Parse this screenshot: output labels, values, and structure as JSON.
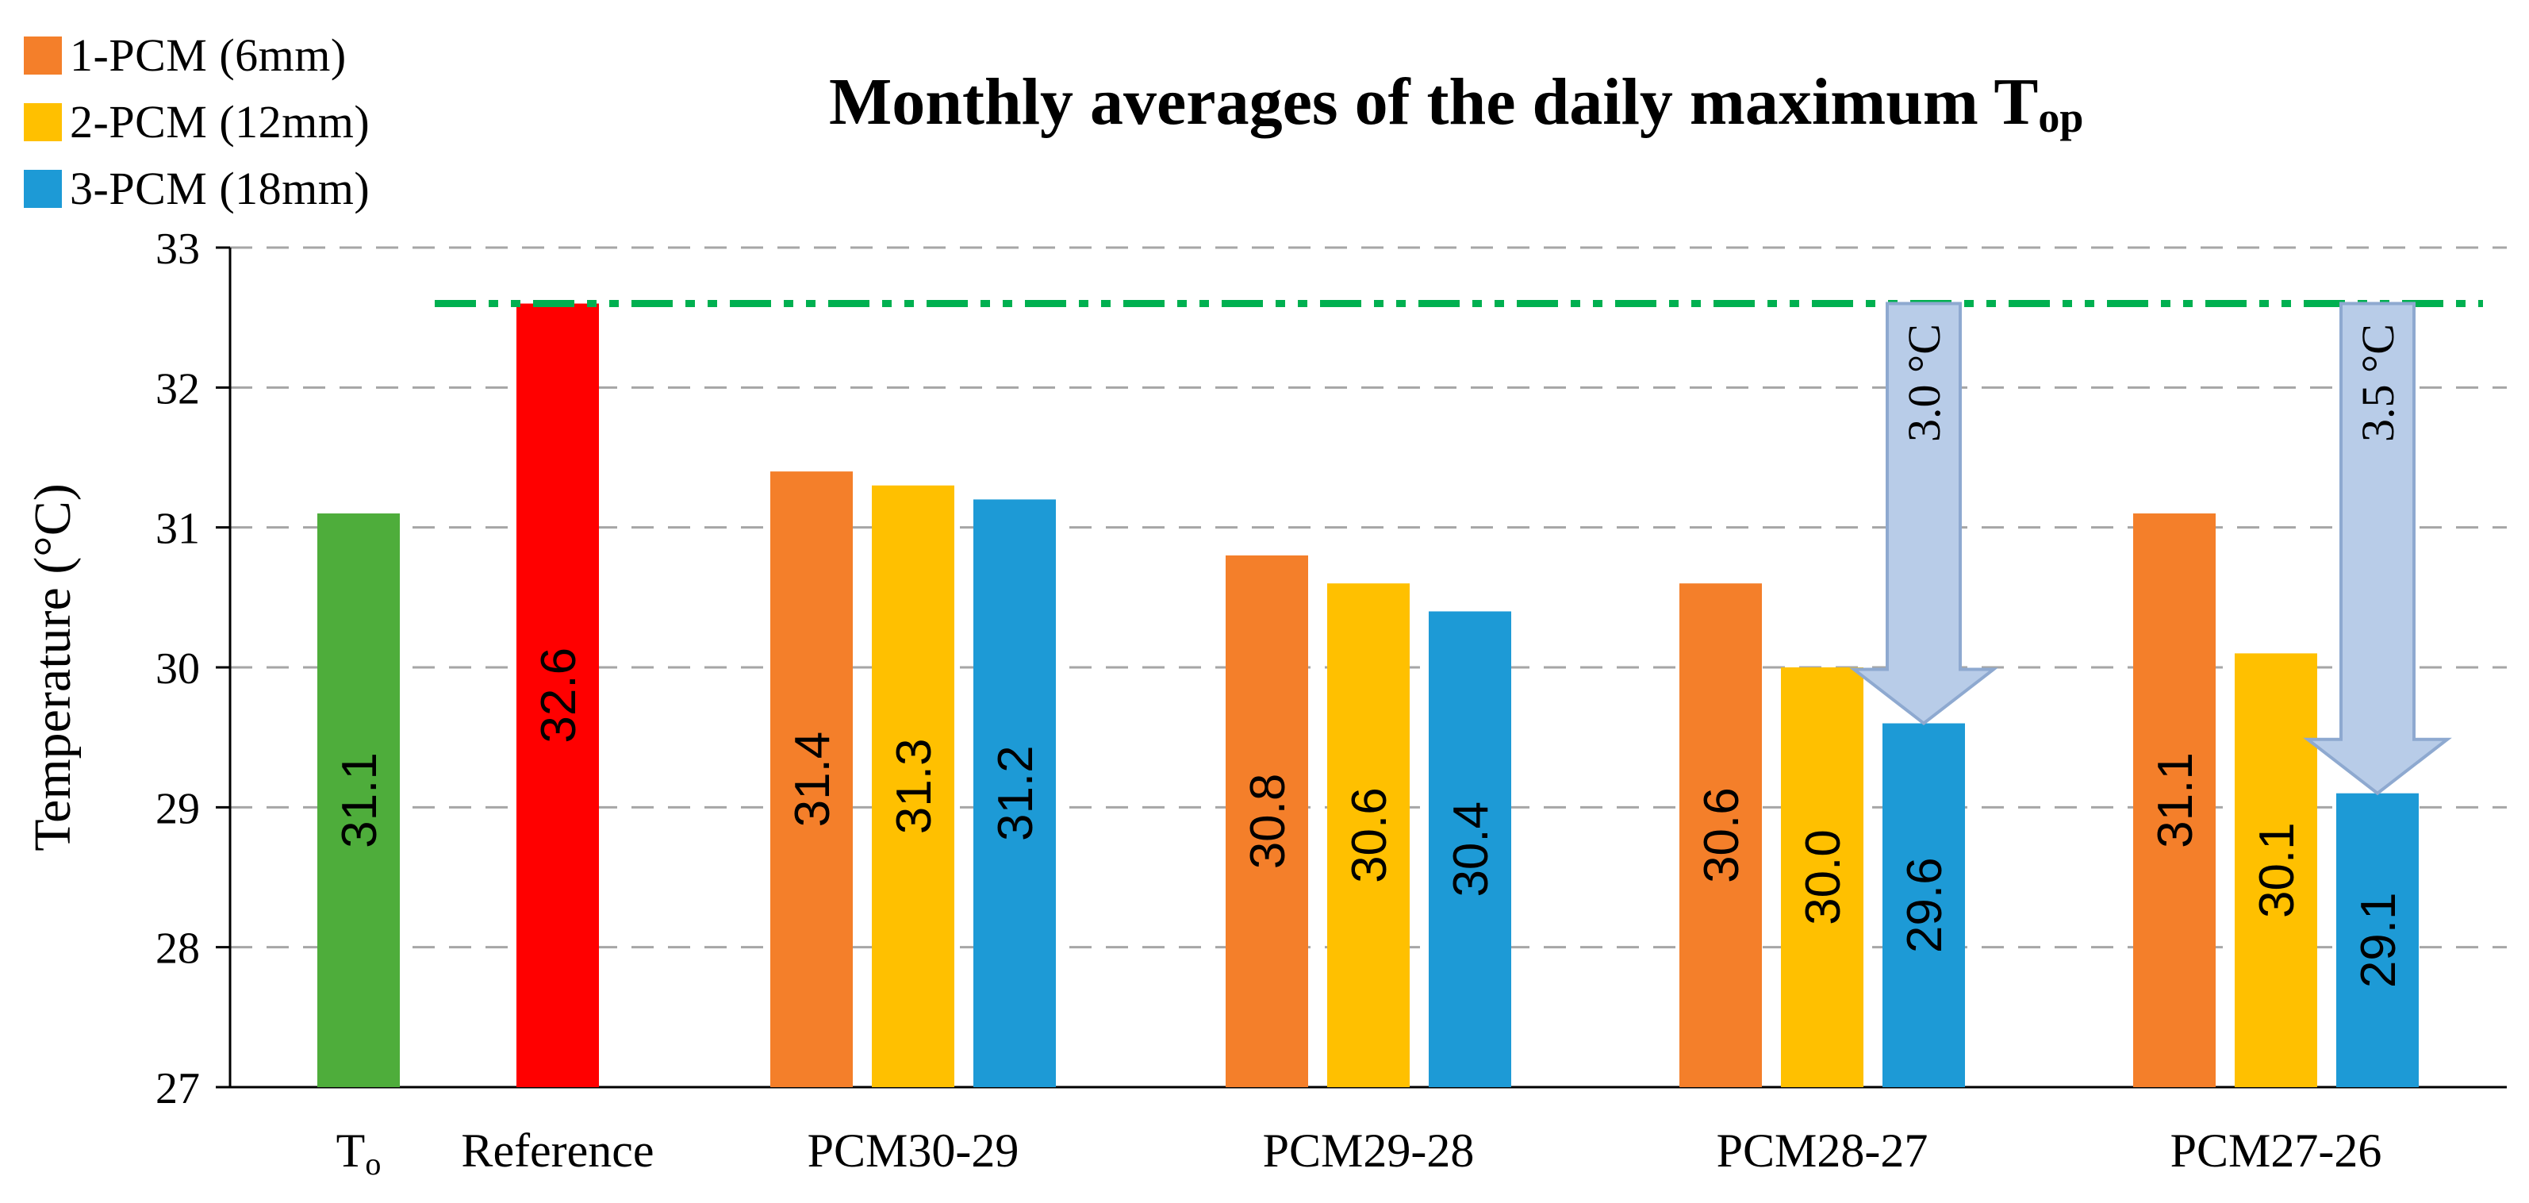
{
  "chart_data": {
    "type": "bar",
    "title": "Monthly averages of the daily maximum T",
    "title_subscript": "op",
    "xlabel": "",
    "ylabel": "Temperature (°C)",
    "ylim": [
      27,
      33
    ],
    "yticks": [
      27,
      28,
      29,
      30,
      31,
      32,
      33
    ],
    "gridlines": "dashed",
    "legend": [
      {
        "name": "1-PCM (6mm)",
        "color": "#F47F2A"
      },
      {
        "name": "2-PCM (12mm)",
        "color": "#FFC000"
      },
      {
        "name": "3-PCM (18mm)",
        "color": "#1D9AD6"
      }
    ],
    "groups": [
      {
        "label": "T",
        "label_sub": "o",
        "bars": [
          {
            "value": 31.1,
            "color": "#4EAD3B"
          }
        ]
      },
      {
        "label": "Reference",
        "label_sub": "",
        "bars": [
          {
            "value": 32.6,
            "color": "#FF0000"
          }
        ]
      },
      {
        "label": "PCM30-29",
        "label_sub": "",
        "bars": [
          {
            "value": 31.4,
            "color": "#F47F2A"
          },
          {
            "value": 31.3,
            "color": "#FFC000"
          },
          {
            "value": 31.2,
            "color": "#1D9AD6"
          }
        ]
      },
      {
        "label": "PCM29-28",
        "label_sub": "",
        "bars": [
          {
            "value": 30.8,
            "color": "#F47F2A"
          },
          {
            "value": 30.6,
            "color": "#FFC000"
          },
          {
            "value": 30.4,
            "color": "#1D9AD6"
          }
        ]
      },
      {
        "label": "PCM28-27",
        "label_sub": "",
        "bars": [
          {
            "value": 30.6,
            "color": "#F47F2A"
          },
          {
            "value": 30.0,
            "color": "#FFC000"
          },
          {
            "value": 29.6,
            "color": "#1D9AD6"
          }
        ]
      },
      {
        "label": "PCM27-26",
        "label_sub": "",
        "bars": [
          {
            "value": 31.1,
            "color": "#F47F2A"
          },
          {
            "value": 30.1,
            "color": "#FFC000"
          },
          {
            "value": 29.1,
            "color": "#1D9AD6"
          }
        ]
      }
    ],
    "reference_line": {
      "value": 32.6,
      "color": "#00B050",
      "style": "dash-dot"
    },
    "annotations": [
      {
        "text": "3.0 °C",
        "group": 4,
        "from": 32.6,
        "to": 29.6
      },
      {
        "text": "3.5 °C",
        "group": 5,
        "from": 32.6,
        "to": 29.1
      }
    ]
  }
}
